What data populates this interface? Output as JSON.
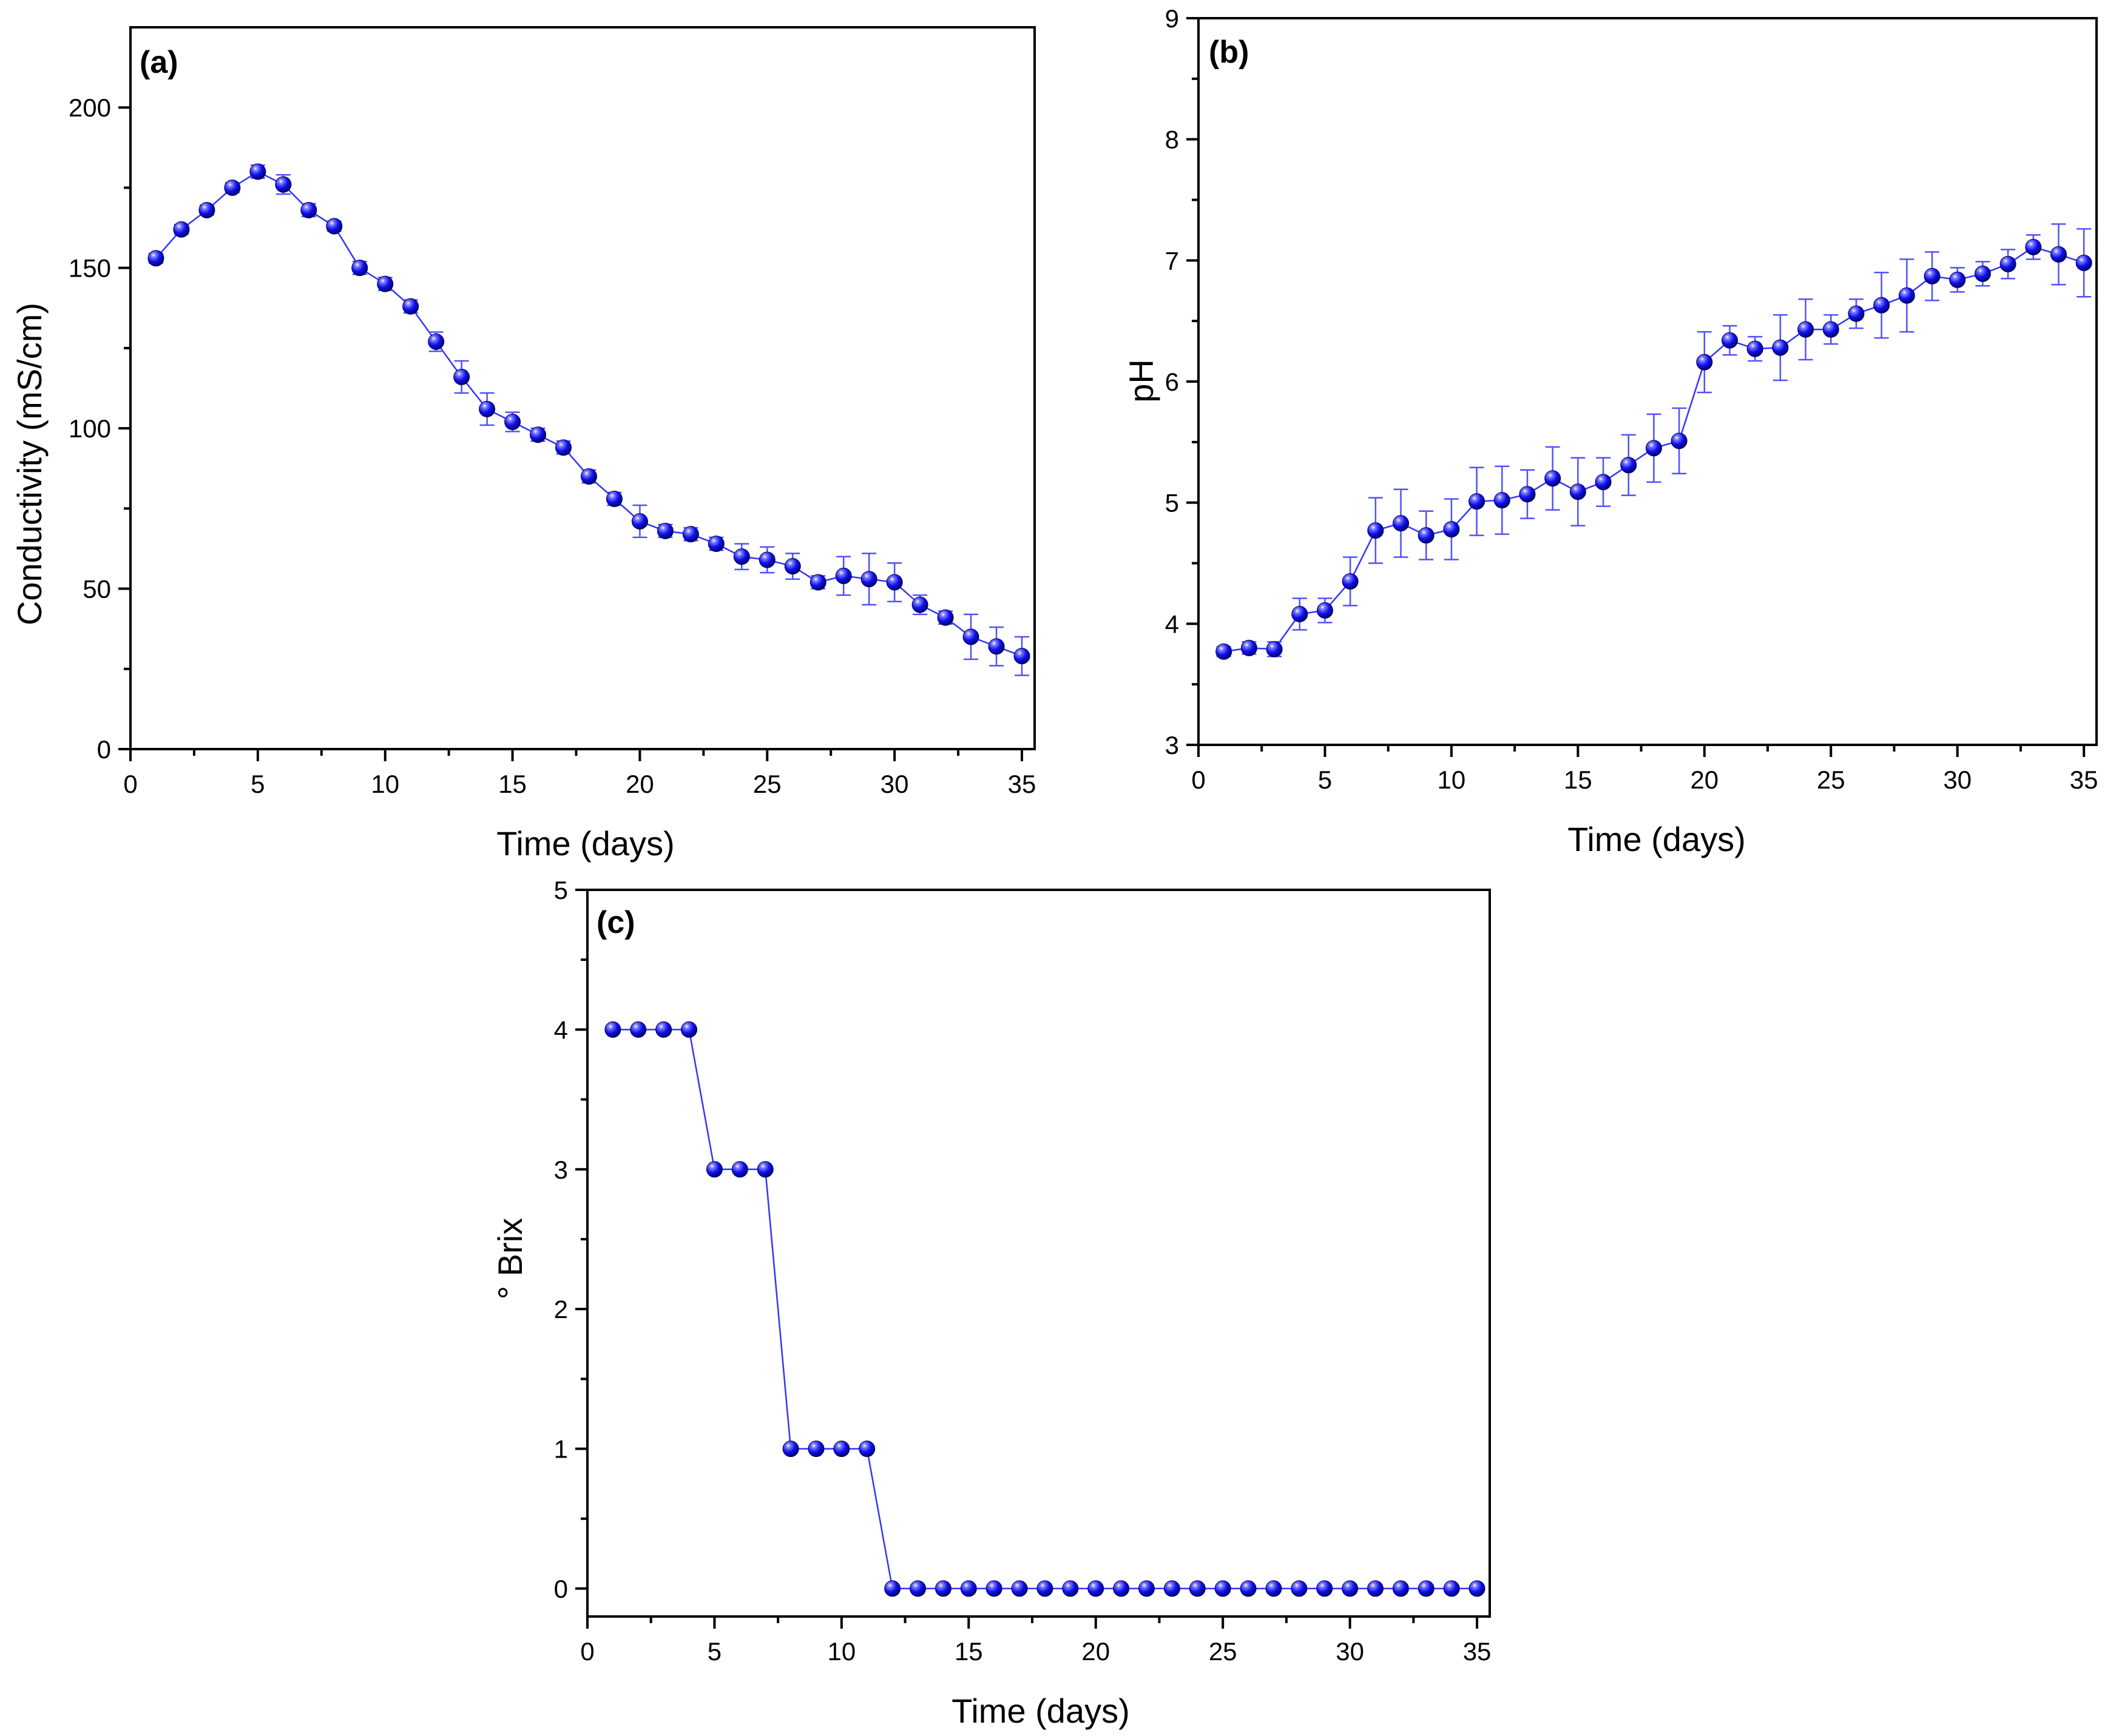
{
  "chart_data": [
    {
      "id": "a",
      "type": "line",
      "panel_label": "(a)",
      "xlabel": "Time (days)",
      "ylabel": "Conductivity (mS/cm)",
      "xlim": [
        0,
        35.5
      ],
      "ylim": [
        0,
        225
      ],
      "xticks": [
        0,
        5,
        10,
        15,
        20,
        25,
        30,
        35
      ],
      "yticks": [
        0,
        50,
        100,
        150,
        200
      ],
      "x": [
        1,
        2,
        3,
        4,
        5,
        6,
        7,
        8,
        9,
        10,
        11,
        12,
        13,
        14,
        15,
        16,
        17,
        18,
        19,
        20,
        21,
        22,
        23,
        24,
        25,
        26,
        27,
        28,
        29,
        30,
        31,
        32,
        33,
        34,
        35
      ],
      "values": [
        153,
        162,
        168,
        175,
        180,
        176,
        168,
        163,
        150,
        145,
        138,
        127,
        116,
        106,
        102,
        98,
        94,
        85,
        78,
        71,
        68,
        67,
        64,
        60,
        59,
        57,
        52,
        54,
        53,
        52,
        45,
        41,
        35,
        32,
        29
      ],
      "errors": [
        1.5,
        1.5,
        1.5,
        1.5,
        2,
        3,
        2,
        1.5,
        2,
        2,
        2,
        3,
        5,
        5,
        3,
        2,
        2,
        2,
        2,
        5,
        2,
        2,
        2,
        4,
        4,
        4,
        2,
        6,
        8,
        6,
        3,
        2,
        7,
        6,
        6
      ]
    },
    {
      "id": "b",
      "type": "line",
      "panel_label": "(b)",
      "xlabel": "Time (days)",
      "ylabel": "pH",
      "xlim": [
        0,
        35.5
      ],
      "ylim": [
        3,
        9
      ],
      "xticks": [
        0,
        5,
        10,
        15,
        20,
        25,
        30,
        35
      ],
      "yticks": [
        3,
        4,
        5,
        6,
        7,
        8,
        9
      ],
      "x": [
        1,
        2,
        3,
        4,
        5,
        6,
        7,
        8,
        9,
        10,
        11,
        12,
        13,
        14,
        15,
        16,
        17,
        18,
        19,
        20,
        21,
        22,
        23,
        24,
        25,
        26,
        27,
        28,
        29,
        30,
        31,
        32,
        33,
        34,
        35
      ],
      "values": [
        3.77,
        3.8,
        3.79,
        4.08,
        4.11,
        4.35,
        4.77,
        4.83,
        4.73,
        4.78,
        5.01,
        5.02,
        5.07,
        5.2,
        5.09,
        5.17,
        5.31,
        5.45,
        5.51,
        6.16,
        6.34,
        6.27,
        6.28,
        6.43,
        6.43,
        6.56,
        6.63,
        6.71,
        6.87,
        6.84,
        6.89,
        6.97,
        7.11,
        7.05,
        6.98
      ],
      "errors": [
        0.04,
        0.05,
        0.06,
        0.13,
        0.1,
        0.2,
        0.27,
        0.28,
        0.2,
        0.25,
        0.28,
        0.28,
        0.2,
        0.26,
        0.28,
        0.2,
        0.25,
        0.28,
        0.27,
        0.25,
        0.12,
        0.1,
        0.27,
        0.25,
        0.12,
        0.12,
        0.27,
        0.3,
        0.2,
        0.1,
        0.1,
        0.12,
        0.1,
        0.25,
        0.28
      ]
    },
    {
      "id": "c",
      "type": "line",
      "panel_label": "(c)",
      "xlabel": "Time (days)",
      "ylabel": "° Brix",
      "xlim": [
        0,
        35.5
      ],
      "ylim": [
        -0.2,
        5
      ],
      "xticks": [
        0,
        5,
        10,
        15,
        20,
        25,
        30,
        35
      ],
      "yticks": [
        0,
        1,
        2,
        3,
        4,
        5
      ],
      "x": [
        1,
        2,
        3,
        4,
        5,
        6,
        7,
        8,
        9,
        10,
        11,
        12,
        13,
        14,
        15,
        16,
        17,
        18,
        19,
        20,
        21,
        22,
        23,
        24,
        25,
        26,
        27,
        28,
        29,
        30,
        31,
        32,
        33,
        34,
        35
      ],
      "values": [
        4,
        4,
        4,
        4,
        3,
        3,
        3,
        1,
        1,
        1,
        1,
        0,
        0,
        0,
        0,
        0,
        0,
        0,
        0,
        0,
        0,
        0,
        0,
        0,
        0,
        0,
        0,
        0,
        0,
        0,
        0,
        0,
        0,
        0,
        0
      ]
    }
  ],
  "colors": {
    "marker": "#1a1aff",
    "line": "#3333ff",
    "error": "#5050ff"
  }
}
